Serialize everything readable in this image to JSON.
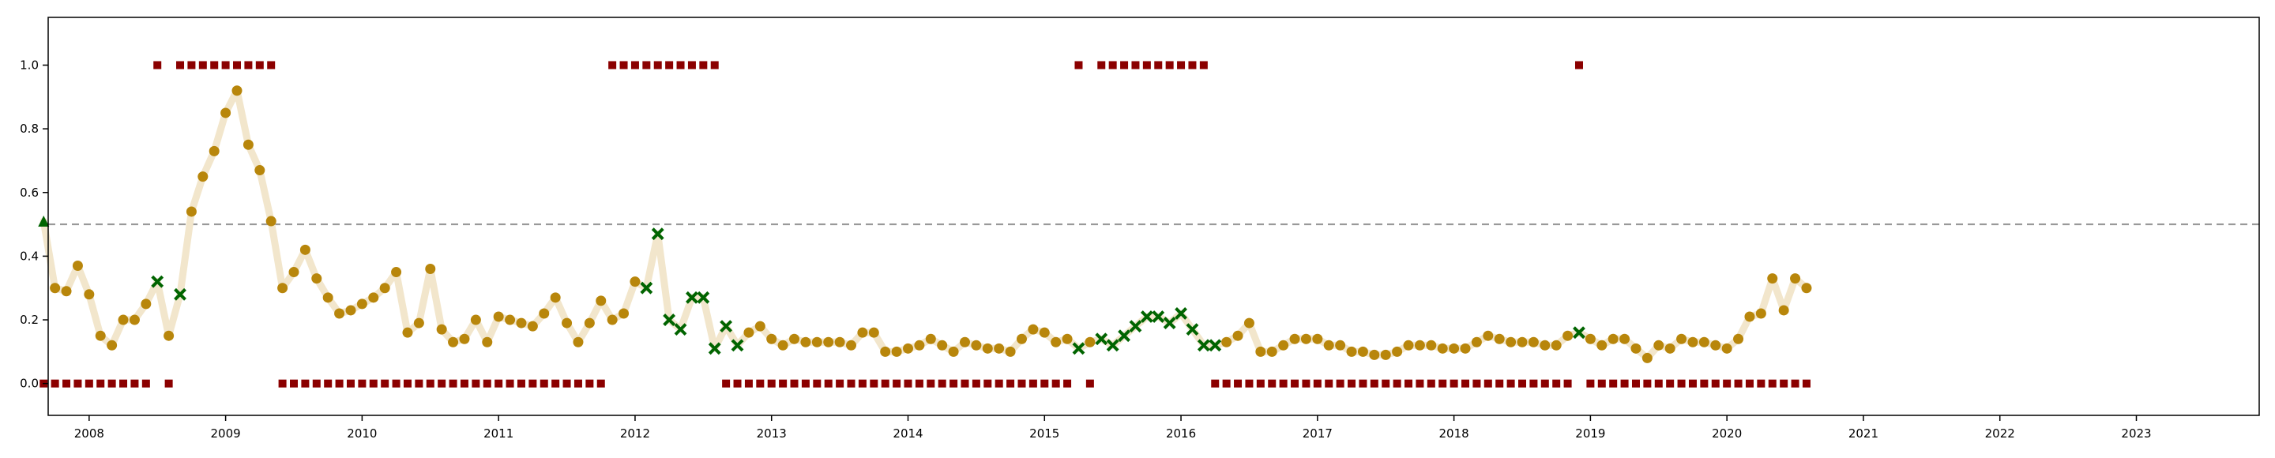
{
  "chart_data": {
    "type": "line",
    "title": "",
    "xlabel": "",
    "ylabel": "",
    "xlim": [
      2007.7,
      2023.9
    ],
    "ylim": [
      -0.1,
      1.15
    ],
    "x_ticks": [
      "2008",
      "2009",
      "2010",
      "2011",
      "2012",
      "2013",
      "2014",
      "2015",
      "2016",
      "2017",
      "2018",
      "2019",
      "2020",
      "2021",
      "2022",
      "2023"
    ],
    "y_ticks": [
      "0.0",
      "0.2",
      "0.4",
      "0.6",
      "0.8",
      "1.0"
    ],
    "threshold": 0.5,
    "grid": false,
    "legend": "none",
    "colors": {
      "score_line": "#f2e6cc",
      "score_point": "#b8860b",
      "flagged_point": "#006400",
      "label_marker": "#8b0000",
      "threshold_line": "#999999",
      "axis": "#000000"
    },
    "series": [
      {
        "role": "score",
        "x": [
          "2007-09",
          "2007-10",
          "2007-11",
          "2007-12",
          "2008-01",
          "2008-02",
          "2008-03",
          "2008-04",
          "2008-05",
          "2008-06",
          "2008-07",
          "2008-08",
          "2008-09",
          "2008-10",
          "2008-11",
          "2008-12",
          "2009-01",
          "2009-02",
          "2009-03",
          "2009-04",
          "2009-05",
          "2009-06",
          "2009-07",
          "2009-08",
          "2009-09",
          "2009-10",
          "2009-11",
          "2009-12",
          "2010-01",
          "2010-02",
          "2010-03",
          "2010-04",
          "2010-05",
          "2010-06",
          "2010-07",
          "2010-08",
          "2010-09",
          "2010-10",
          "2010-11",
          "2010-12",
          "2011-01",
          "2011-02",
          "2011-03",
          "2011-04",
          "2011-05",
          "2011-06",
          "2011-07",
          "2011-08",
          "2011-09",
          "2011-10",
          "2011-11",
          "2011-12",
          "2012-01",
          "2012-02",
          "2012-03",
          "2012-04",
          "2012-05",
          "2012-06",
          "2012-07",
          "2012-08",
          "2012-09",
          "2012-10",
          "2012-11",
          "2012-12",
          "2013-01",
          "2013-02",
          "2013-03",
          "2013-04",
          "2013-05",
          "2013-06",
          "2013-07",
          "2013-08",
          "2013-09",
          "2013-10",
          "2013-11",
          "2013-12",
          "2014-01",
          "2014-02",
          "2014-03",
          "2014-04",
          "2014-05",
          "2014-06",
          "2014-07",
          "2014-08",
          "2014-09",
          "2014-10",
          "2014-11",
          "2014-12",
          "2015-01",
          "2015-02",
          "2015-03",
          "2015-04",
          "2015-05",
          "2015-06",
          "2015-07",
          "2015-08",
          "2015-09",
          "2015-10",
          "2015-11",
          "2015-12",
          "2016-01",
          "2016-02",
          "2016-03",
          "2016-04",
          "2016-05",
          "2016-06",
          "2016-07",
          "2016-08",
          "2016-09",
          "2016-10",
          "2016-11",
          "2016-12",
          "2017-01",
          "2017-02",
          "2017-03",
          "2017-04",
          "2017-05",
          "2017-06",
          "2017-07",
          "2017-08",
          "2017-09",
          "2017-10",
          "2017-11",
          "2017-12",
          "2018-01",
          "2018-02",
          "2018-03",
          "2018-04",
          "2018-05",
          "2018-06",
          "2018-07",
          "2018-08",
          "2018-09",
          "2018-10",
          "2018-11",
          "2018-12",
          "2019-01",
          "2019-02",
          "2019-03",
          "2019-04",
          "2019-05",
          "2019-06",
          "2019-07",
          "2019-08",
          "2019-09",
          "2019-10",
          "2019-11",
          "2019-12",
          "2020-01",
          "2020-02",
          "2020-03",
          "2020-04",
          "2020-05",
          "2020-06",
          "2020-07",
          "2020-08"
        ],
        "values": [
          0.51,
          0.3,
          0.29,
          0.37,
          0.28,
          0.15,
          0.12,
          0.2,
          0.2,
          0.25,
          0.32,
          0.15,
          0.28,
          0.54,
          0.65,
          0.73,
          0.85,
          0.92,
          0.75,
          0.67,
          0.51,
          0.3,
          0.35,
          0.42,
          0.33,
          0.27,
          0.22,
          0.23,
          0.25,
          0.27,
          0.3,
          0.35,
          0.16,
          0.19,
          0.36,
          0.17,
          0.13,
          0.14,
          0.2,
          0.13,
          0.21,
          0.2,
          0.19,
          0.18,
          0.22,
          0.27,
          0.19,
          0.13,
          0.19,
          0.26,
          0.2,
          0.22,
          0.32,
          0.3,
          0.47,
          0.2,
          0.17,
          0.27,
          0.27,
          0.11,
          0.18,
          0.12,
          0.16,
          0.18,
          0.14,
          0.12,
          0.14,
          0.13,
          0.13,
          0.13,
          0.13,
          0.12,
          0.16,
          0.16,
          0.1,
          0.1,
          0.11,
          0.12,
          0.14,
          0.12,
          0.1,
          0.13,
          0.12,
          0.11,
          0.11,
          0.1,
          0.14,
          0.17,
          0.16,
          0.13,
          0.14,
          0.11,
          0.13,
          0.14,
          0.12,
          0.15,
          0.18,
          0.21,
          0.21,
          0.19,
          0.22,
          0.17,
          0.12,
          0.12,
          0.13,
          0.15,
          0.19,
          0.1,
          0.1,
          0.12,
          0.14,
          0.14,
          0.14,
          0.12,
          0.12,
          0.1,
          0.1,
          0.09,
          0.09,
          0.1,
          0.12,
          0.12,
          0.12,
          0.11,
          0.11,
          0.11,
          0.13,
          0.15,
          0.14,
          0.13,
          0.13,
          0.13,
          0.12,
          0.12,
          0.15,
          0.16,
          0.14,
          0.12,
          0.14,
          0.14,
          0.11,
          0.08,
          0.12,
          0.11,
          0.14,
          0.13,
          0.13,
          0.12,
          0.11,
          0.14,
          0.21,
          0.22,
          0.33,
          0.23,
          0.33,
          0.3
        ],
        "flagged": [
          0,
          10,
          12,
          53,
          54,
          55,
          56,
          57,
          58,
          59,
          60,
          61,
          91,
          93,
          94,
          95,
          96,
          97,
          98,
          99,
          100,
          101,
          102,
          103,
          135
        ]
      },
      {
        "role": "label",
        "x": [
          "2007-09",
          "2007-10",
          "2007-11",
          "2007-12",
          "2008-01",
          "2008-02",
          "2008-03",
          "2008-04",
          "2008-05",
          "2008-06",
          "2008-07",
          "2008-08",
          "2008-09",
          "2008-10",
          "2008-11",
          "2008-12",
          "2009-01",
          "2009-02",
          "2009-03",
          "2009-04",
          "2009-05",
          "2009-06",
          "2009-07",
          "2009-08",
          "2009-09",
          "2009-10",
          "2009-11",
          "2009-12",
          "2010-01",
          "2010-02",
          "2010-03",
          "2010-04",
          "2010-05",
          "2010-06",
          "2010-07",
          "2010-08",
          "2010-09",
          "2010-10",
          "2010-11",
          "2010-12",
          "2011-01",
          "2011-02",
          "2011-03",
          "2011-04",
          "2011-05",
          "2011-06",
          "2011-07",
          "2011-08",
          "2011-09",
          "2011-10",
          "2011-11",
          "2011-12",
          "2012-01",
          "2012-02",
          "2012-03",
          "2012-04",
          "2012-05",
          "2012-06",
          "2012-07",
          "2012-08",
          "2012-09",
          "2012-10",
          "2012-11",
          "2012-12",
          "2013-01",
          "2013-02",
          "2013-03",
          "2013-04",
          "2013-05",
          "2013-06",
          "2013-07",
          "2013-08",
          "2013-09",
          "2013-10",
          "2013-11",
          "2013-12",
          "2014-01",
          "2014-02",
          "2014-03",
          "2014-04",
          "2014-05",
          "2014-06",
          "2014-07",
          "2014-08",
          "2014-09",
          "2014-10",
          "2014-11",
          "2014-12",
          "2015-01",
          "2015-02",
          "2015-03",
          "2015-04",
          "2015-05",
          "2015-06",
          "2015-07",
          "2015-08",
          "2015-09",
          "2015-10",
          "2015-11",
          "2015-12",
          "2016-01",
          "2016-02",
          "2016-03",
          "2016-04",
          "2016-05",
          "2016-06",
          "2016-07",
          "2016-08",
          "2016-09",
          "2016-10",
          "2016-11",
          "2016-12",
          "2017-01",
          "2017-02",
          "2017-03",
          "2017-04",
          "2017-05",
          "2017-06",
          "2017-07",
          "2017-08",
          "2017-09",
          "2017-10",
          "2017-11",
          "2017-12",
          "2018-01",
          "2018-02",
          "2018-03",
          "2018-04",
          "2018-05",
          "2018-06",
          "2018-07",
          "2018-08",
          "2018-09",
          "2018-10",
          "2018-11",
          "2018-12",
          "2019-01",
          "2019-02",
          "2019-03",
          "2019-04",
          "2019-05",
          "2019-06",
          "2019-07",
          "2019-08",
          "2019-09",
          "2019-10",
          "2019-11",
          "2019-12",
          "2020-01",
          "2020-02",
          "2020-03",
          "2020-04",
          "2020-05",
          "2020-06",
          "2020-07",
          "2020-08"
        ],
        "values": [
          0,
          0,
          0,
          0,
          0,
          0,
          0,
          0,
          0,
          0,
          1,
          0,
          1,
          1,
          1,
          1,
          1,
          1,
          1,
          1,
          1,
          0,
          0,
          0,
          0,
          0,
          0,
          0,
          0,
          0,
          0,
          0,
          0,
          0,
          0,
          0,
          0,
          0,
          0,
          0,
          0,
          0,
          0,
          0,
          0,
          0,
          0,
          0,
          0,
          0,
          1,
          1,
          1,
          1,
          1,
          1,
          1,
          1,
          1,
          1,
          0,
          0,
          0,
          0,
          0,
          0,
          0,
          0,
          0,
          0,
          0,
          0,
          0,
          0,
          0,
          0,
          0,
          0,
          0,
          0,
          0,
          0,
          0,
          0,
          0,
          0,
          0,
          0,
          0,
          0,
          0,
          1,
          0,
          1,
          1,
          1,
          1,
          1,
          1,
          1,
          1,
          1,
          1,
          0,
          0,
          0,
          0,
          0,
          0,
          0,
          0,
          0,
          0,
          0,
          0,
          0,
          0,
          0,
          0,
          0,
          0,
          0,
          0,
          0,
          0,
          0,
          0,
          0,
          0,
          0,
          0,
          0,
          0,
          0,
          0,
          1,
          0,
          0,
          0,
          0,
          0,
          0,
          0,
          0,
          0,
          0,
          0,
          0,
          0,
          0,
          0,
          0,
          0,
          0,
          0,
          0
        ]
      }
    ]
  }
}
